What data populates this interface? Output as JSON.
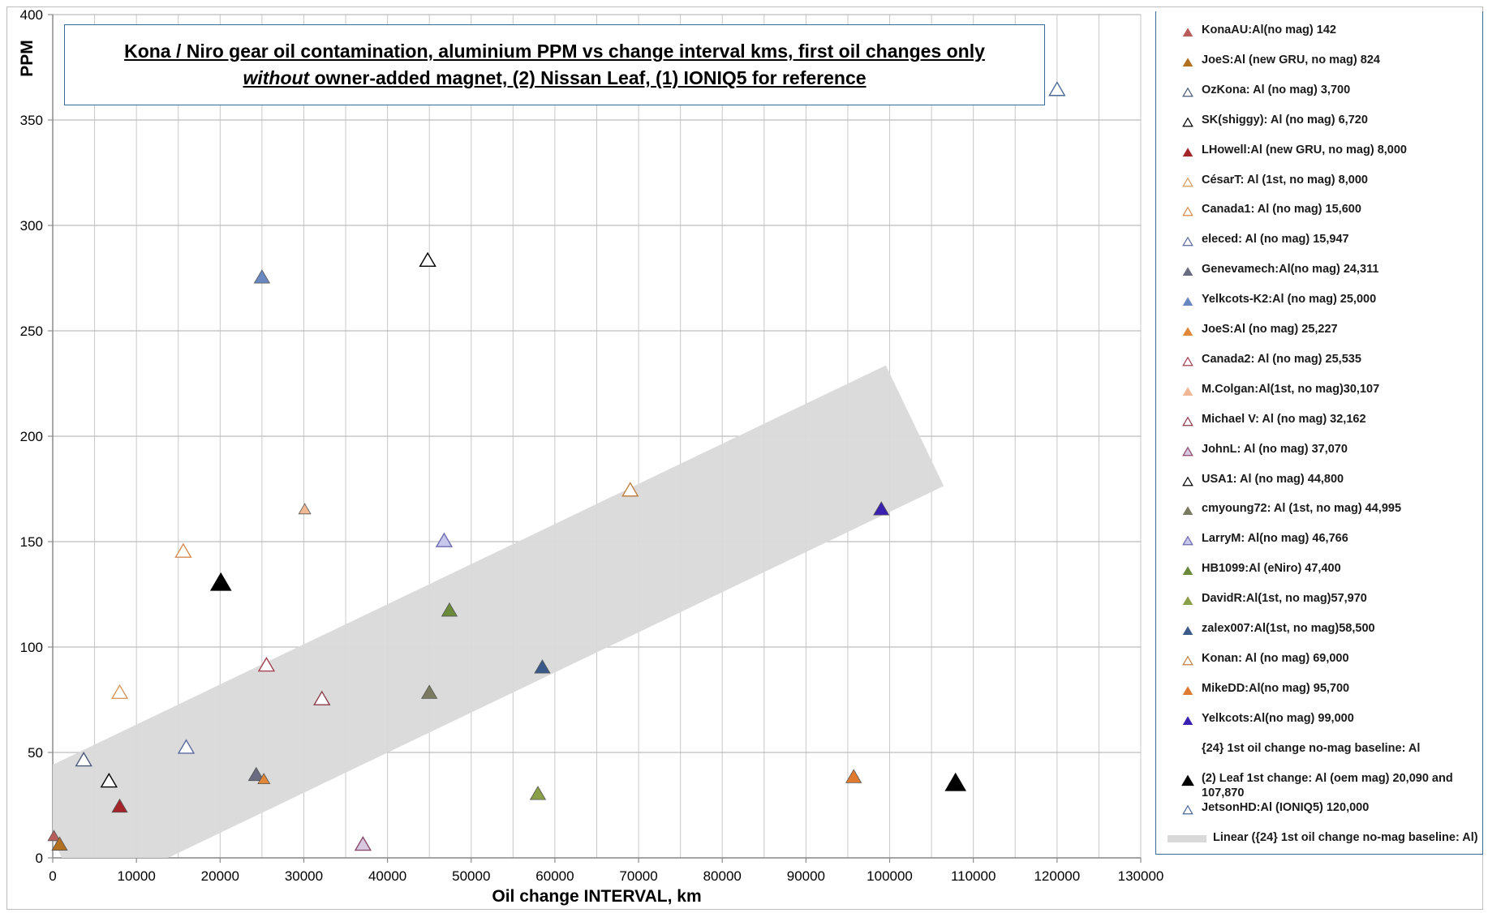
{
  "chart_data": {
    "type": "scatter",
    "title_line1": "Kona / Niro gear oil contamination, aluminium PPM vs change interval kms, first oil changes only",
    "title_line2": "without owner-added magnet, (2) Nissan Leaf, (1) IONIQ5 for reference",
    "xlabel": "Oil change INTERVAL, km",
    "ylabel": "PPM",
    "xlim": [
      0,
      130000
    ],
    "ylim": [
      0,
      400
    ],
    "x_major_step": 10000,
    "x_minor_step": 5000,
    "y_major_step": 50,
    "x_tick_labels": [
      "0",
      "10000",
      "20000",
      "30000",
      "40000",
      "50000",
      "60000",
      "70000",
      "80000",
      "90000",
      "100000",
      "110000",
      "120000",
      "130000"
    ],
    "y_tick_labels": [
      "0",
      "50",
      "100",
      "150",
      "200",
      "250",
      "300",
      "350",
      "400"
    ],
    "grid": true,
    "legend_position": "right",
    "trend_band": {
      "name": "Linear ({24} 1st oil change no-mag baseline: Al)",
      "color": "#d9d9d9",
      "x": [
        0,
        103000
      ],
      "y_center": [
        9,
        205
      ],
      "half_width": 16
    },
    "series": [
      {
        "name": "KonaAU:Al(no mag) 142",
        "x": [
          142
        ],
        "y": [
          10
        ],
        "filled": true,
        "color": "#b85c5c",
        "size": "small"
      },
      {
        "name": "JoeS:Al (new GRU, no mag) 824",
        "x": [
          824
        ],
        "y": [
          6
        ],
        "filled": true,
        "color": "#b07020",
        "size": "medium"
      },
      {
        "name": "OzKona: Al (no mag) 3,700",
        "x": [
          3700
        ],
        "y": [
          46
        ],
        "filled": false,
        "color": "#4a5a7a",
        "size": "medium"
      },
      {
        "name": "SK(shiggy): Al (no mag) 6,720",
        "x": [
          6720
        ],
        "y": [
          36
        ],
        "filled": false,
        "color": "#000000",
        "size": "medium"
      },
      {
        "name": "LHowell:Al (new GRU, no mag) 8,000",
        "x": [
          8000
        ],
        "y": [
          24
        ],
        "filled": true,
        "color": "#a3252a",
        "size": "medium"
      },
      {
        "name": "CésarT: Al (1st, no mag) 8,000",
        "x": [
          8000
        ],
        "y": [
          78
        ],
        "filled": false,
        "color": "#d89a60",
        "size": "medium"
      },
      {
        "name": "Canada1: Al (no mag) 15,600",
        "x": [
          15600
        ],
        "y": [
          145
        ],
        "filled": false,
        "color": "#d48a50",
        "size": "medium"
      },
      {
        "name": "eleced: Al (no mag) 15,947",
        "x": [
          15947
        ],
        "y": [
          52
        ],
        "filled": false,
        "color": "#5a6aa0",
        "size": "medium"
      },
      {
        "name": "Genevamech:Al(no mag) 24,311",
        "x": [
          24311
        ],
        "y": [
          39
        ],
        "filled": true,
        "color": "#6a6a80",
        "size": "medium"
      },
      {
        "name": "Yelkcots-K2:Al (no mag) 25,000",
        "x": [
          25000
        ],
        "y": [
          275
        ],
        "filled": true,
        "color": "#6a88c0",
        "size": "medium"
      },
      {
        "name": "JoeS:Al (no mag) 25,227",
        "x": [
          25227
        ],
        "y": [
          37
        ],
        "filled": true,
        "color": "#e0883a",
        "size": "small"
      },
      {
        "name": "Canada2: Al (no mag) 25,535",
        "x": [
          25535
        ],
        "y": [
          91
        ],
        "filled": false,
        "color": "#a04050",
        "size": "medium"
      },
      {
        "name": "M.Colgan:Al(1st, no mag)30,107",
        "x": [
          30107
        ],
        "y": [
          165
        ],
        "filled": true,
        "color": "#f0b894",
        "size": "small"
      },
      {
        "name": "Michael V: Al (no mag) 32,162",
        "x": [
          32162
        ],
        "y": [
          75
        ],
        "filled": false,
        "color": "#8a3a4a",
        "size": "medium"
      },
      {
        "name": "JohnL: Al (no mag) 37,070",
        "x": [
          37070
        ],
        "y": [
          6
        ],
        "filled": false,
        "color": "#8a4a6a",
        "size": "medium",
        "fill_light": "#d8c8e0"
      },
      {
        "name": "USA1: Al (no mag) 44,800",
        "x": [
          44800
        ],
        "y": [
          283
        ],
        "filled": false,
        "color": "#000000",
        "size": "medium"
      },
      {
        "name": "cmyoung72: Al (1st, no mag) 44,995",
        "x": [
          44995
        ],
        "y": [
          78
        ],
        "filled": true,
        "color": "#7a7a60",
        "size": "medium"
      },
      {
        "name": "LarryM: Al(no mag) 46,766",
        "x": [
          46766
        ],
        "y": [
          150
        ],
        "filled": false,
        "color": "#6a6ab0",
        "size": "medium",
        "fill_light": "#c8c8ec"
      },
      {
        "name": "HB1099:Al (eNiro) 47,400",
        "x": [
          47400
        ],
        "y": [
          117
        ],
        "filled": true,
        "color": "#6a8a3a",
        "size": "medium"
      },
      {
        "name": "DavidR:Al(1st, no mag)57,970",
        "x": [
          57970
        ],
        "y": [
          30
        ],
        "filled": true,
        "color": "#8aa048",
        "size": "medium"
      },
      {
        "name": "zalex007:Al(1st, no mag)58,500",
        "x": [
          58500
        ],
        "y": [
          90
        ],
        "filled": true,
        "color": "#3a5a8a",
        "size": "medium"
      },
      {
        "name": "Konan: Al (no mag) 69,000",
        "x": [
          69000
        ],
        "y": [
          174
        ],
        "filled": false,
        "color": "#c08040",
        "size": "medium"
      },
      {
        "name": "MikeDD:Al(no mag) 95,700",
        "x": [
          95700
        ],
        "y": [
          38
        ],
        "filled": true,
        "color": "#e07a30",
        "size": "medium"
      },
      {
        "name": "Yelkcots:Al(no mag) 99,000",
        "x": [
          99000
        ],
        "y": [
          165
        ],
        "filled": true,
        "color": "#3a20b0",
        "size": "medium"
      },
      {
        "name": "{24} 1st oil change no-mag baseline: Al",
        "x": [],
        "y": [],
        "filled": false,
        "color": "#ffffff",
        "size": "none"
      },
      {
        "name": "(2) Leaf 1st change: Al (oem mag) 20,090 and 107,870",
        "x": [
          20090,
          107870
        ],
        "y": [
          130,
          35
        ],
        "filled": true,
        "color": "#000000",
        "size": "large"
      },
      {
        "name": "JetsonHD:Al (IONIQ5) 120,000",
        "x": [
          120000
        ],
        "y": [
          364
        ],
        "filled": false,
        "color": "#4a6a9a",
        "size": "medium"
      }
    ]
  }
}
